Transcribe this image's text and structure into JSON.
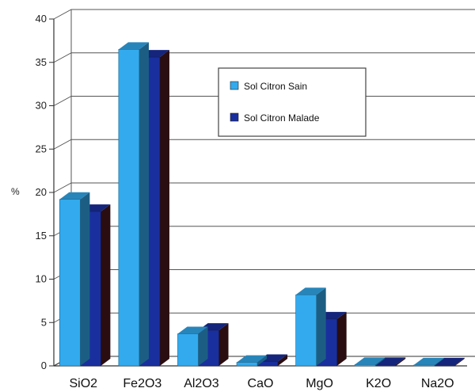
{
  "chart_data": {
    "type": "bar",
    "style": "3d-clustered",
    "title": "",
    "xlabel": "",
    "ylabel": "%",
    "ylim": [
      0,
      40
    ],
    "yticks": [
      0,
      5,
      10,
      15,
      20,
      25,
      30,
      35,
      40
    ],
    "grid": true,
    "legend_position": "top-right",
    "categories": [
      "SiO2",
      "Fe2O3",
      "Al2O3",
      "CaO",
      "MgO",
      "K2O",
      "Na2O"
    ],
    "series": [
      {
        "name": "Sol Citron Sain",
        "color": "#33aaee",
        "values": [
          19.2,
          36.5,
          3.7,
          0.4,
          8.2,
          0.15,
          0.1
        ]
      },
      {
        "name": "Sol Citron Malade",
        "color": "#1a2f9e",
        "values": [
          17.8,
          35.6,
          4.1,
          0.5,
          5.4,
          0.15,
          0.1
        ]
      }
    ]
  }
}
